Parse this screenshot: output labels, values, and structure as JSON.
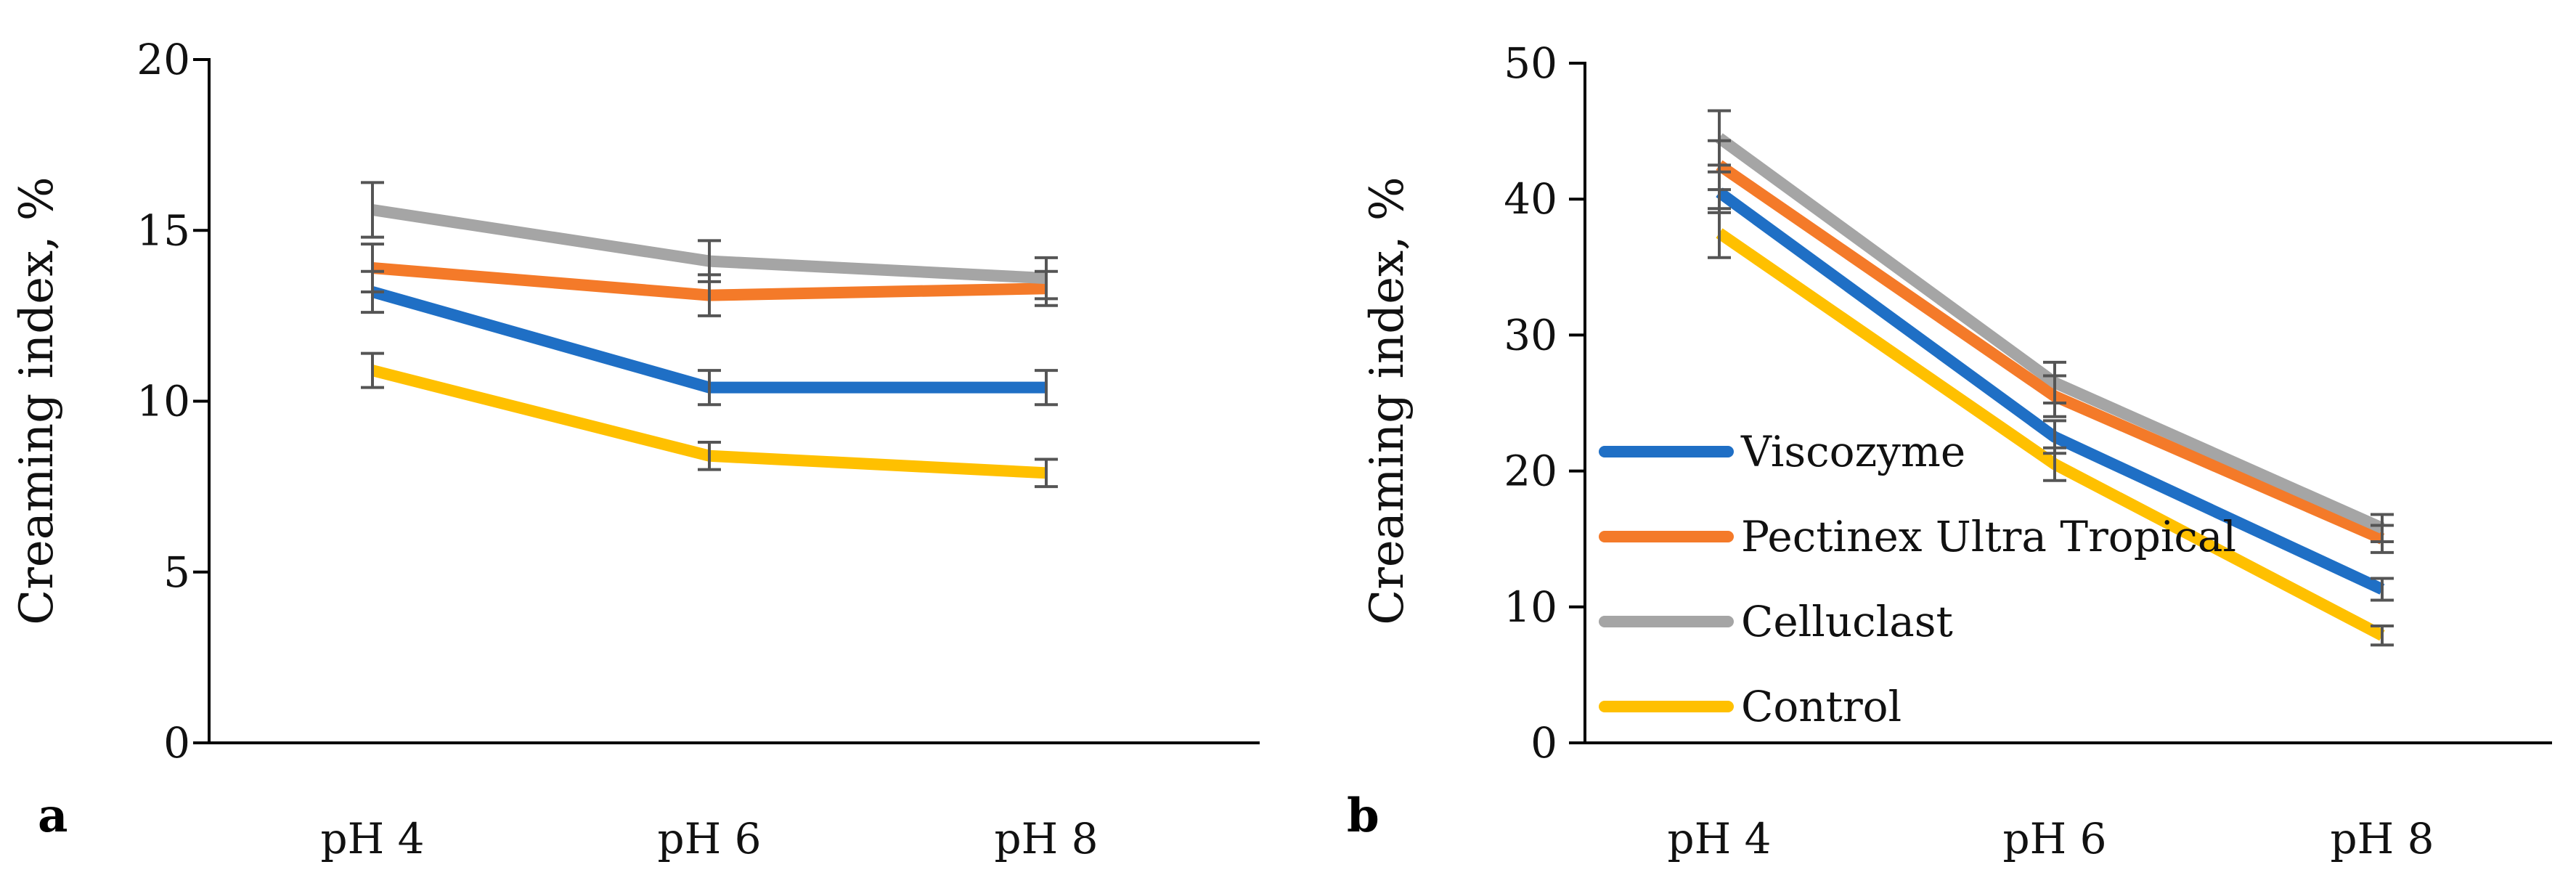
{
  "chart_data": [
    {
      "type": "line",
      "panel_label": "a",
      "ylabel": "Creaming index, %",
      "xlabel": "",
      "categories": [
        "pH 4",
        "pH 6",
        "pH 8"
      ],
      "ylim": [
        0,
        20
      ],
      "yticks": [
        0,
        5,
        10,
        15,
        20
      ],
      "series": [
        {
          "name": "Viscozyme",
          "color": "#1F6FC5",
          "values": [
            13.2,
            10.4,
            10.4
          ],
          "errors": [
            0.6,
            0.5,
            0.5
          ]
        },
        {
          "name": "Pectinex Ultra Tropical",
          "color": "#F47A29",
          "values": [
            13.9,
            13.1,
            13.3
          ],
          "errors": [
            0.7,
            0.6,
            0.5
          ]
        },
        {
          "name": "Celluclast",
          "color": "#A5A5A5",
          "values": [
            15.6,
            14.1,
            13.6
          ],
          "errors": [
            0.8,
            0.6,
            0.6
          ]
        },
        {
          "name": "Control",
          "color": "#FFC000",
          "values": [
            10.9,
            8.4,
            7.9
          ],
          "errors": [
            0.5,
            0.4,
            0.4
          ]
        }
      ]
    },
    {
      "type": "line",
      "panel_label": "b",
      "ylabel": "Creaming index, %",
      "xlabel": "",
      "categories": [
        "pH 4",
        "pH 6",
        "pH 8"
      ],
      "ylim": [
        0,
        50
      ],
      "yticks": [
        0,
        10,
        20,
        30,
        40,
        50
      ],
      "legend_position": "bottom-left",
      "series": [
        {
          "name": "Viscozyme",
          "color": "#1F6FC5",
          "values": [
            40.5,
            22.5,
            11.3
          ],
          "errors": [
            1.5,
            1.2,
            0.8
          ]
        },
        {
          "name": "Pectinex Ultra Tropical",
          "color": "#F47A29",
          "values": [
            42.5,
            25.5,
            15.0
          ],
          "errors": [
            1.8,
            1.5,
            1.0
          ]
        },
        {
          "name": "Celluclast",
          "color": "#A5A5A5",
          "values": [
            44.5,
            26.5,
            15.8
          ],
          "errors": [
            2.0,
            1.5,
            1.0
          ]
        },
        {
          "name": "Control",
          "color": "#FFC000",
          "values": [
            37.5,
            20.5,
            7.9
          ],
          "errors": [
            1.8,
            1.2,
            0.7
          ]
        }
      ]
    }
  ]
}
